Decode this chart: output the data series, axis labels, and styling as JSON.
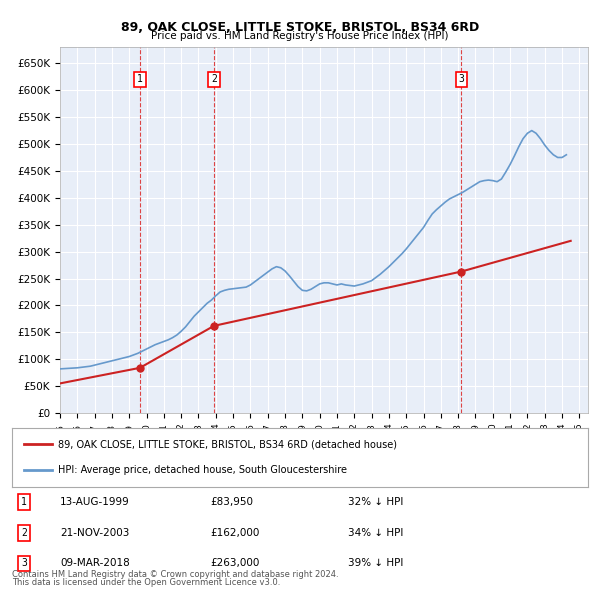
{
  "title1": "89, OAK CLOSE, LITTLE STOKE, BRISTOL, BS34 6RD",
  "title2": "Price paid vs. HM Land Registry's House Price Index (HPI)",
  "ylabel": "",
  "background_color": "#ffffff",
  "plot_bg_color": "#e8eef8",
  "grid_color": "#ffffff",
  "hpi_color": "#6699cc",
  "price_color": "#cc2222",
  "sale_marker_color": "#cc2222",
  "vline_color": "#dd4444",
  "sales": [
    {
      "date_num": 1999.616,
      "price": 83950,
      "label": "1",
      "date_str": "13-AUG-1999"
    },
    {
      "date_num": 2003.894,
      "price": 162000,
      "label": "2",
      "date_str": "21-NOV-2003"
    },
    {
      "date_num": 2018.187,
      "price": 263000,
      "label": "3",
      "date_str": "09-MAR-2018"
    }
  ],
  "sale_pct": [
    "32% ↓ HPI",
    "34% ↓ HPI",
    "39% ↓ HPI"
  ],
  "xmin": 1995.0,
  "xmax": 2025.5,
  "ymin": 0,
  "ymax": 680000,
  "yticks": [
    0,
    50000,
    100000,
    150000,
    200000,
    250000,
    300000,
    350000,
    400000,
    450000,
    500000,
    550000,
    600000,
    650000
  ],
  "ytick_labels": [
    "£0",
    "£50K",
    "£100K",
    "£150K",
    "£200K",
    "£250K",
    "£300K",
    "£350K",
    "£400K",
    "£450K",
    "£500K",
    "£550K",
    "£600K",
    "£650K"
  ],
  "legend_label_price": "89, OAK CLOSE, LITTLE STOKE, BRISTOL, BS34 6RD (detached house)",
  "legend_label_hpi": "HPI: Average price, detached house, South Gloucestershire",
  "footnote1": "Contains HM Land Registry data © Crown copyright and database right 2024.",
  "footnote2": "This data is licensed under the Open Government Licence v3.0.",
  "hpi_data": {
    "years": [
      1995.0,
      1995.25,
      1995.5,
      1995.75,
      1996.0,
      1996.25,
      1996.5,
      1996.75,
      1997.0,
      1997.25,
      1997.5,
      1997.75,
      1998.0,
      1998.25,
      1998.5,
      1998.75,
      1999.0,
      1999.25,
      1999.5,
      1999.75,
      2000.0,
      2000.25,
      2000.5,
      2000.75,
      2001.0,
      2001.25,
      2001.5,
      2001.75,
      2002.0,
      2002.25,
      2002.5,
      2002.75,
      2003.0,
      2003.25,
      2003.5,
      2003.75,
      2004.0,
      2004.25,
      2004.5,
      2004.75,
      2005.0,
      2005.25,
      2005.5,
      2005.75,
      2006.0,
      2006.25,
      2006.5,
      2006.75,
      2007.0,
      2007.25,
      2007.5,
      2007.75,
      2008.0,
      2008.25,
      2008.5,
      2008.75,
      2009.0,
      2009.25,
      2009.5,
      2009.75,
      2010.0,
      2010.25,
      2010.5,
      2010.75,
      2011.0,
      2011.25,
      2011.5,
      2011.75,
      2012.0,
      2012.25,
      2012.5,
      2012.75,
      2013.0,
      2013.25,
      2013.5,
      2013.75,
      2014.0,
      2014.25,
      2014.5,
      2014.75,
      2015.0,
      2015.25,
      2015.5,
      2015.75,
      2016.0,
      2016.25,
      2016.5,
      2016.75,
      2017.0,
      2017.25,
      2017.5,
      2017.75,
      2018.0,
      2018.25,
      2018.5,
      2018.75,
      2019.0,
      2019.25,
      2019.5,
      2019.75,
      2020.0,
      2020.25,
      2020.5,
      2020.75,
      2021.0,
      2021.25,
      2021.5,
      2021.75,
      2022.0,
      2022.25,
      2022.5,
      2022.75,
      2023.0,
      2023.25,
      2023.5,
      2023.75,
      2024.0,
      2024.25
    ],
    "values": [
      82000,
      82500,
      83000,
      83500,
      84000,
      85000,
      86000,
      87000,
      89000,
      91000,
      93000,
      95000,
      97000,
      99000,
      101000,
      103000,
      105000,
      108000,
      111000,
      115000,
      119000,
      123000,
      127000,
      130000,
      133000,
      136000,
      140000,
      145000,
      152000,
      160000,
      170000,
      180000,
      188000,
      196000,
      204000,
      210000,
      218000,
      225000,
      228000,
      230000,
      231000,
      232000,
      233000,
      234000,
      238000,
      244000,
      250000,
      256000,
      262000,
      268000,
      272000,
      270000,
      264000,
      255000,
      245000,
      235000,
      228000,
      227000,
      230000,
      235000,
      240000,
      242000,
      242000,
      240000,
      238000,
      240000,
      238000,
      237000,
      236000,
      238000,
      240000,
      243000,
      246000,
      252000,
      258000,
      265000,
      272000,
      280000,
      288000,
      296000,
      305000,
      315000,
      325000,
      335000,
      345000,
      358000,
      370000,
      378000,
      385000,
      392000,
      398000,
      402000,
      406000,
      410000,
      415000,
      420000,
      425000,
      430000,
      432000,
      433000,
      432000,
      430000,
      435000,
      448000,
      462000,
      478000,
      495000,
      510000,
      520000,
      525000,
      520000,
      510000,
      498000,
      488000,
      480000,
      475000,
      475000,
      480000
    ]
  },
  "price_data": {
    "years": [
      1995.0,
      1999.616,
      2003.894,
      2018.187,
      2024.5
    ],
    "values": [
      55000,
      83950,
      162000,
      263000,
      320000
    ]
  }
}
